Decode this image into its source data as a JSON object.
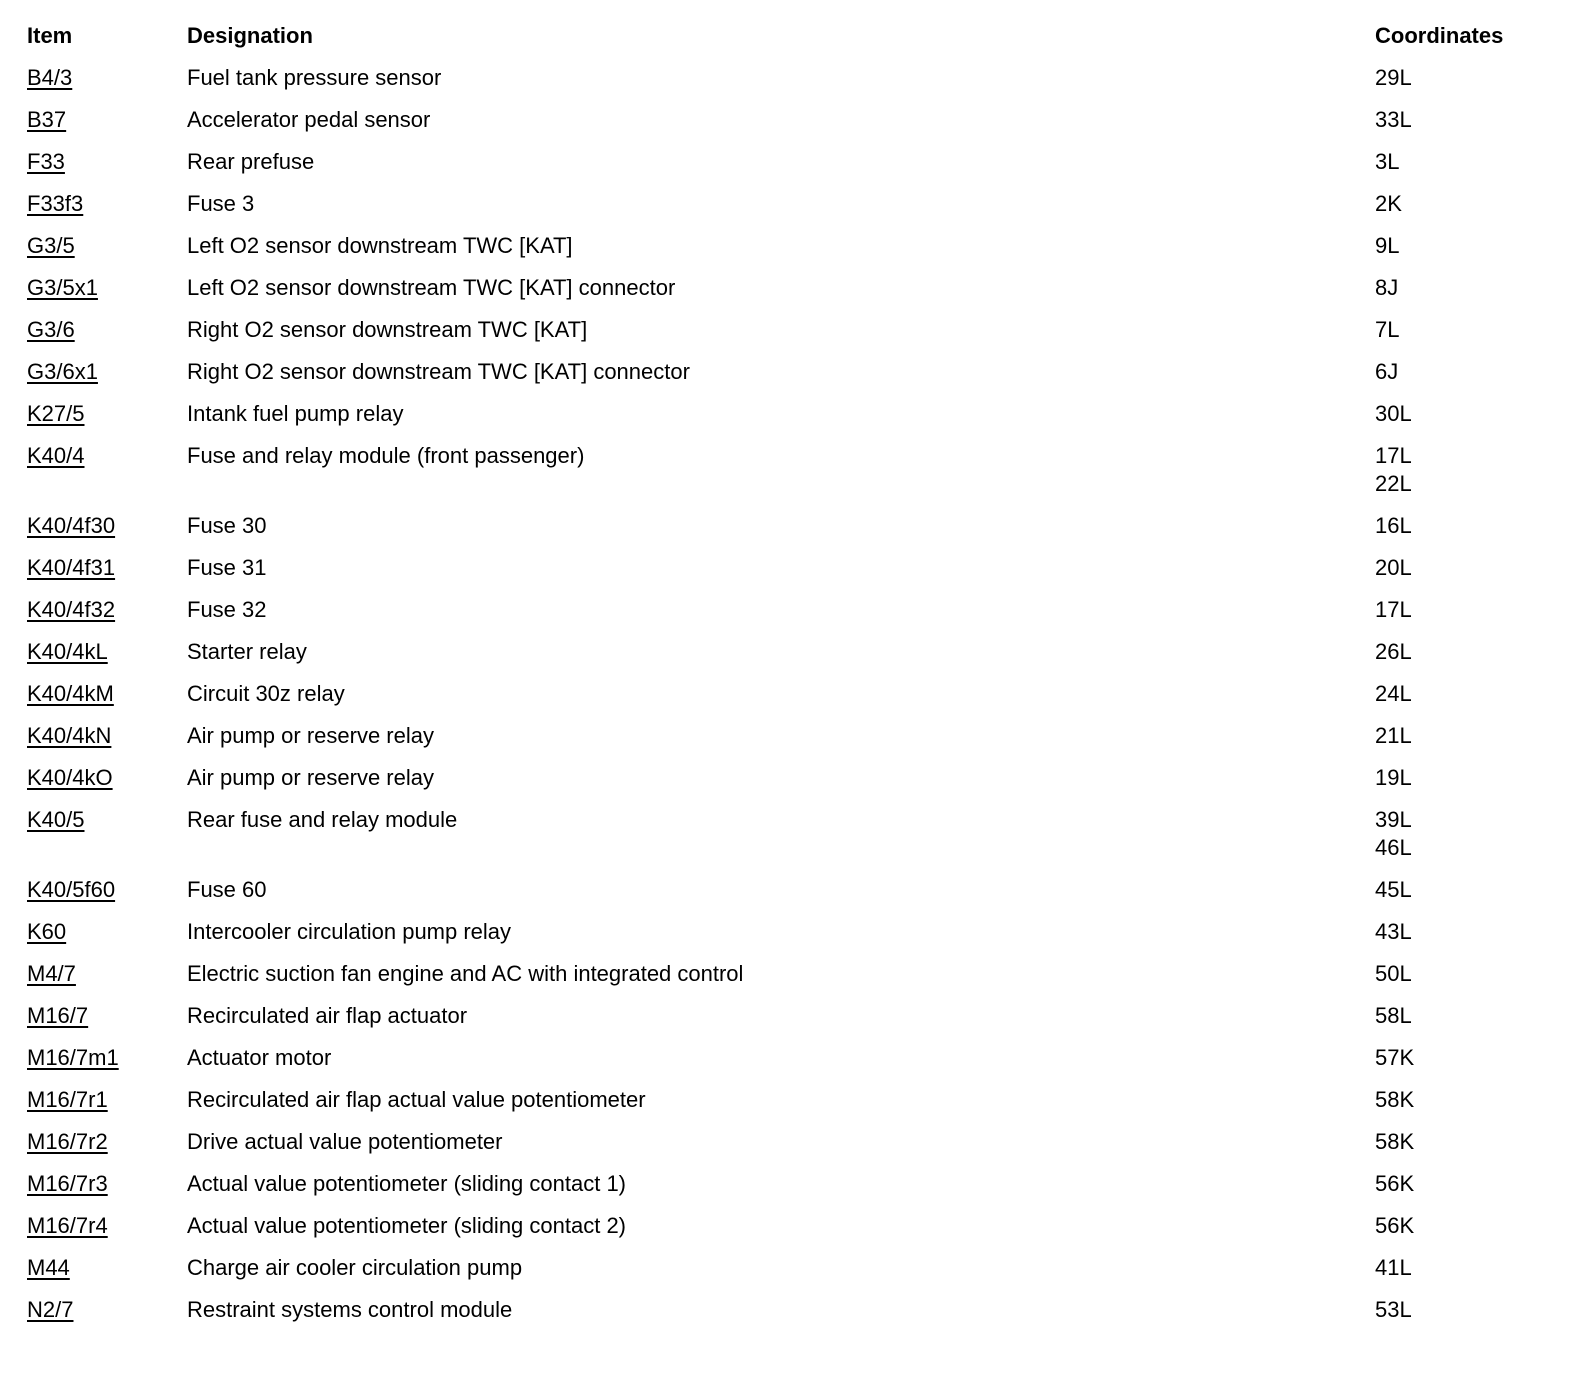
{
  "table": {
    "columns": {
      "item": "Item",
      "designation": "Designation",
      "coordinates": "Coordinates"
    },
    "rows": [
      {
        "item": "B4/3",
        "designation": "Fuel tank pressure sensor",
        "coordinates": [
          "29L"
        ]
      },
      {
        "item": "B37",
        "designation": "Accelerator pedal sensor",
        "coordinates": [
          "33L"
        ]
      },
      {
        "item": "F33",
        "designation": "Rear prefuse",
        "coordinates": [
          "3L"
        ]
      },
      {
        "item": "F33f3",
        "designation": "Fuse 3",
        "coordinates": [
          "2K"
        ]
      },
      {
        "item": "G3/5",
        "designation": "Left O2 sensor downstream TWC [KAT]",
        "coordinates": [
          "9L"
        ]
      },
      {
        "item": "G3/5x1",
        "designation": "Left O2 sensor downstream TWC [KAT] connector",
        "coordinates": [
          "8J"
        ]
      },
      {
        "item": "G3/6",
        "designation": "Right O2 sensor downstream TWC [KAT]",
        "coordinates": [
          "7L"
        ]
      },
      {
        "item": "G3/6x1",
        "designation": "Right O2 sensor downstream TWC [KAT] connector",
        "coordinates": [
          "6J"
        ]
      },
      {
        "item": "K27/5",
        "designation": "Intank fuel pump relay",
        "coordinates": [
          "30L"
        ]
      },
      {
        "item": "K40/4",
        "designation": "Fuse and relay module (front passenger)",
        "coordinates": [
          "17L",
          "22L"
        ]
      },
      {
        "item": "K40/4f30",
        "designation": "Fuse 30",
        "coordinates": [
          "16L"
        ]
      },
      {
        "item": "K40/4f31",
        "designation": "Fuse 31",
        "coordinates": [
          "20L"
        ]
      },
      {
        "item": "K40/4f32",
        "designation": "Fuse 32",
        "coordinates": [
          "17L"
        ]
      },
      {
        "item": "K40/4kL",
        "designation": "Starter relay",
        "coordinates": [
          "26L"
        ]
      },
      {
        "item": "K40/4kM",
        "designation": "Circuit 30z relay",
        "coordinates": [
          "24L"
        ]
      },
      {
        "item": "K40/4kN",
        "designation": "Air pump or reserve relay",
        "coordinates": [
          "21L"
        ]
      },
      {
        "item": "K40/4kO",
        "designation": "Air pump or reserve relay",
        "coordinates": [
          "19L"
        ]
      },
      {
        "item": "K40/5",
        "designation": "Rear fuse and relay module",
        "coordinates": [
          "39L",
          "46L"
        ]
      },
      {
        "item": "K40/5f60",
        "designation": "Fuse 60",
        "coordinates": [
          "45L"
        ]
      },
      {
        "item": "K60",
        "designation": "Intercooler circulation pump relay",
        "coordinates": [
          "43L"
        ]
      },
      {
        "item": "M4/7",
        "designation": "Electric suction fan engine and AC with integrated control",
        "coordinates": [
          "50L"
        ]
      },
      {
        "item": "M16/7",
        "designation": "Recirculated air flap actuator",
        "coordinates": [
          "58L"
        ]
      },
      {
        "item": "M16/7m1",
        "designation": "Actuator motor",
        "coordinates": [
          "57K"
        ]
      },
      {
        "item": "M16/7r1",
        "designation": "Recirculated air flap actual value potentiometer",
        "coordinates": [
          "58K"
        ]
      },
      {
        "item": "M16/7r2",
        "designation": "Drive actual value potentiometer",
        "coordinates": [
          "58K"
        ]
      },
      {
        "item": "M16/7r3",
        "designation": "Actual value potentiometer (sliding contact 1)",
        "coordinates": [
          "56K"
        ]
      },
      {
        "item": "M16/7r4",
        "designation": "Actual value potentiometer (sliding contact 2)",
        "coordinates": [
          "56K"
        ]
      },
      {
        "item": "M44",
        "designation": "Charge air cooler circulation pump",
        "coordinates": [
          "41L"
        ]
      },
      {
        "item": "N2/7",
        "designation": "Restraint systems control module",
        "coordinates": [
          "53L"
        ]
      }
    ]
  }
}
